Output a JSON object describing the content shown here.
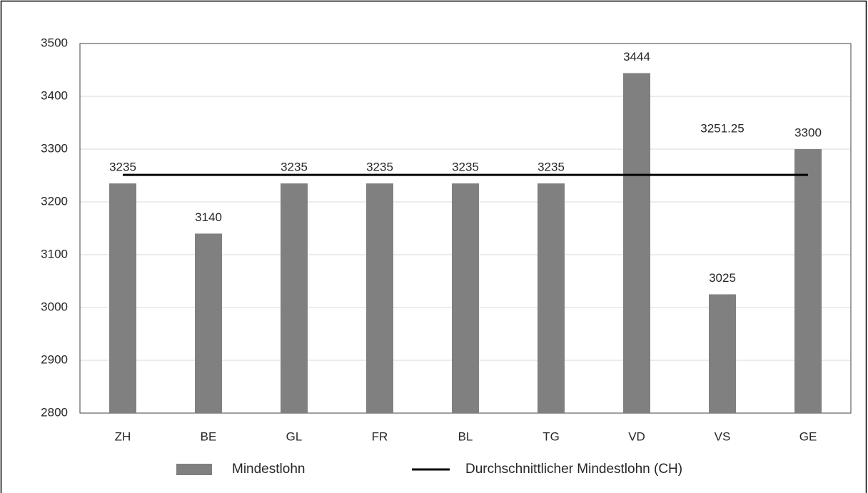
{
  "chart_data": {
    "type": "bar-line",
    "categories": [
      "ZH",
      "BE",
      "GL",
      "FR",
      "BL",
      "TG",
      "VD",
      "VS",
      "GE"
    ],
    "series": [
      {
        "name": "Mindestlohn",
        "type": "bar",
        "color": "#808080",
        "values": [
          3235,
          3140,
          3235,
          3235,
          3235,
          3235,
          3444,
          3025,
          3300
        ]
      },
      {
        "name": "Durchschnittlicher Mindestlohn (CH)",
        "type": "line",
        "color": "#000000",
        "values": [
          3251.25,
          3251.25,
          3251.25,
          3251.25,
          3251.25,
          3251.25,
          3251.25,
          3251.25,
          3251.25
        ],
        "value_labels": [
          null,
          null,
          null,
          null,
          null,
          null,
          null,
          "3251.25",
          null
        ]
      }
    ],
    "ylim": [
      2800,
      3500
    ],
    "yticks": [
      2800,
      2900,
      3000,
      3100,
      3200,
      3300,
      3400,
      3500
    ],
    "grid": true,
    "legend": "bottom"
  }
}
